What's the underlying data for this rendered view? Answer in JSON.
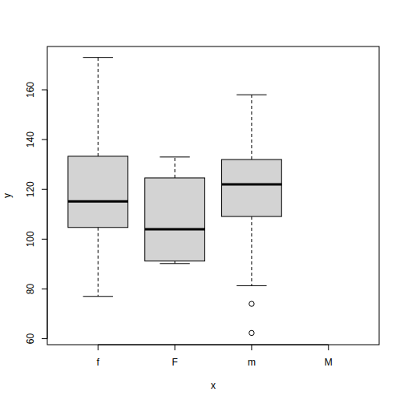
{
  "chart_data": {
    "type": "boxplot",
    "x_label": "x",
    "y_label": "y",
    "categories": [
      "f",
      "F",
      "m",
      "M"
    ],
    "boxes": [
      {
        "min": 77,
        "q1": 104.7,
        "median": 115.2,
        "q3": 133.3,
        "max": 173,
        "outliers": []
      },
      {
        "min": 90.2,
        "q1": 91.2,
        "median": 104,
        "q3": 124.6,
        "max": 133,
        "outliers": []
      },
      {
        "min": 81.3,
        "q1": 109.1,
        "median": 122,
        "q3": 132,
        "max": 158,
        "outliers": [
          74,
          62.3
        ]
      },
      null
    ],
    "color": "#d3d3d3",
    "ylim": [
      57.6,
      177.4
    ],
    "yticks": [
      60,
      80,
      100,
      120,
      140,
      160
    ],
    "grid": false
  }
}
